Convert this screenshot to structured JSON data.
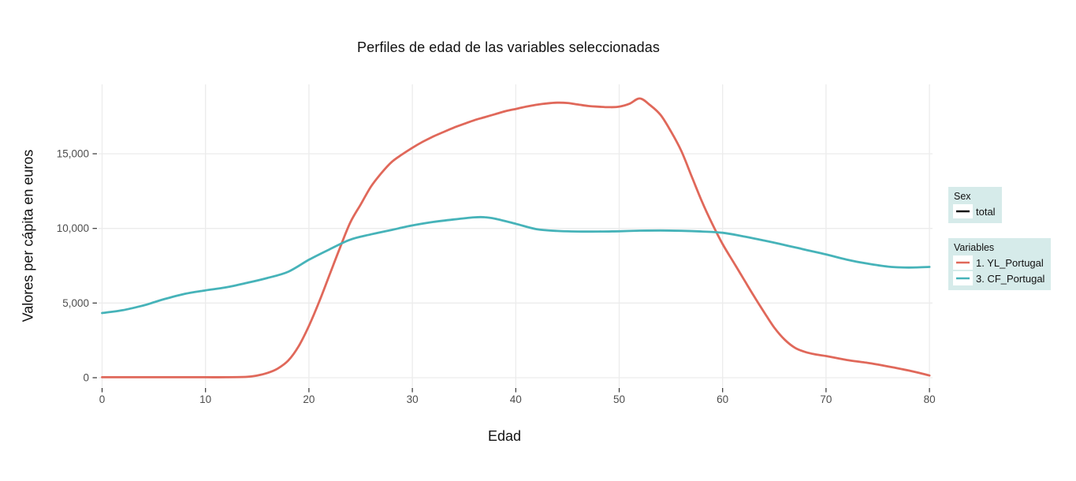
{
  "title": "Perfiles de edad de las variables seleccionadas",
  "x_axis": {
    "label": "Edad",
    "ticks": [
      {
        "v": 0,
        "label": "0"
      },
      {
        "v": 10,
        "label": "10"
      },
      {
        "v": 20,
        "label": "20"
      },
      {
        "v": 30,
        "label": "30"
      },
      {
        "v": 40,
        "label": "40"
      },
      {
        "v": 50,
        "label": "50"
      },
      {
        "v": 60,
        "label": "60"
      },
      {
        "v": 70,
        "label": "70"
      },
      {
        "v": 80,
        "label": "80"
      }
    ]
  },
  "y_axis": {
    "label": "Valores per cápita en euros",
    "ticks": [
      {
        "v": 0,
        "label": "0"
      },
      {
        "v": 5000,
        "label": "5,000"
      },
      {
        "v": 10000,
        "label": "10,000"
      },
      {
        "v": 15000,
        "label": "15,000"
      }
    ]
  },
  "legend": {
    "sex": {
      "title": "Sex",
      "bg": "#d6ebea",
      "items": [
        {
          "label": "total",
          "color": "#111111"
        }
      ]
    },
    "variables": {
      "title": "Variables",
      "bg": "#d6ebea",
      "items": [
        {
          "label": "1. YL_Portugal",
          "color": "#e0685a"
        },
        {
          "label": "3. CF_Portugal",
          "color": "#46b3b9"
        }
      ]
    }
  },
  "colors": {
    "gridline": "#ececec",
    "tick_mark": "#333333",
    "tick_text": "#4d4d4d",
    "background": "#ffffff",
    "legend_bg": "#d6ebea"
  },
  "chart_data": {
    "type": "line",
    "title": "Perfiles de edad de las variables seleccionadas",
    "xlabel": "Edad",
    "ylabel": "Valores per cápita en euros",
    "xlim": [
      0,
      80
    ],
    "ylim": [
      0,
      19600
    ],
    "grid": true,
    "legend_position": "right",
    "x_ticks": [
      0,
      10,
      20,
      30,
      40,
      50,
      60,
      70,
      80
    ],
    "y_ticks": [
      0,
      5000,
      10000,
      15000
    ],
    "series": [
      {
        "name": "1. YL_Portugal",
        "color": "#e0685a",
        "points": [
          [
            0,
            30
          ],
          [
            2,
            30
          ],
          [
            4,
            30
          ],
          [
            6,
            30
          ],
          [
            8,
            30
          ],
          [
            10,
            30
          ],
          [
            12,
            30
          ],
          [
            14,
            60
          ],
          [
            15,
            150
          ],
          [
            16,
            320
          ],
          [
            17,
            620
          ],
          [
            18,
            1150
          ],
          [
            19,
            2100
          ],
          [
            20,
            3470
          ],
          [
            21,
            5100
          ],
          [
            22,
            6900
          ],
          [
            23,
            8700
          ],
          [
            24,
            10400
          ],
          [
            25,
            11600
          ],
          [
            26,
            12800
          ],
          [
            27,
            13700
          ],
          [
            28,
            14450
          ],
          [
            29,
            14950
          ],
          [
            30,
            15400
          ],
          [
            31,
            15800
          ],
          [
            32,
            16150
          ],
          [
            33,
            16450
          ],
          [
            34,
            16750
          ],
          [
            35,
            17000
          ],
          [
            36,
            17250
          ],
          [
            37,
            17450
          ],
          [
            38,
            17650
          ],
          [
            39,
            17850
          ],
          [
            40,
            18000
          ],
          [
            41,
            18150
          ],
          [
            42,
            18280
          ],
          [
            43,
            18370
          ],
          [
            44,
            18420
          ],
          [
            45,
            18400
          ],
          [
            46,
            18300
          ],
          [
            47,
            18200
          ],
          [
            48,
            18150
          ],
          [
            49,
            18120
          ],
          [
            50,
            18150
          ],
          [
            51,
            18350
          ],
          [
            52,
            18700
          ],
          [
            53,
            18250
          ],
          [
            54,
            17600
          ],
          [
            55,
            16500
          ],
          [
            56,
            15200
          ],
          [
            57,
            13500
          ],
          [
            58,
            11800
          ],
          [
            59,
            10300
          ],
          [
            60,
            8950
          ],
          [
            61,
            7800
          ],
          [
            62,
            6650
          ],
          [
            63,
            5500
          ],
          [
            64,
            4400
          ],
          [
            65,
            3350
          ],
          [
            66,
            2550
          ],
          [
            67,
            2000
          ],
          [
            68,
            1720
          ],
          [
            69,
            1560
          ],
          [
            70,
            1450
          ],
          [
            71,
            1320
          ],
          [
            72,
            1190
          ],
          [
            73,
            1090
          ],
          [
            74,
            1000
          ],
          [
            75,
            880
          ],
          [
            76,
            750
          ],
          [
            77,
            620
          ],
          [
            78,
            480
          ],
          [
            79,
            320
          ],
          [
            80,
            150
          ]
        ]
      },
      {
        "name": "3. CF_Portugal",
        "color": "#46b3b9",
        "points": [
          [
            0,
            4330
          ],
          [
            2,
            4520
          ],
          [
            4,
            4840
          ],
          [
            5,
            5050
          ],
          [
            6,
            5260
          ],
          [
            8,
            5620
          ],
          [
            10,
            5850
          ],
          [
            12,
            6050
          ],
          [
            14,
            6350
          ],
          [
            16,
            6680
          ],
          [
            18,
            7100
          ],
          [
            20,
            7900
          ],
          [
            22,
            8600
          ],
          [
            24,
            9250
          ],
          [
            26,
            9600
          ],
          [
            28,
            9900
          ],
          [
            30,
            10200
          ],
          [
            32,
            10430
          ],
          [
            34,
            10600
          ],
          [
            36,
            10740
          ],
          [
            37,
            10750
          ],
          [
            38,
            10650
          ],
          [
            40,
            10310
          ],
          [
            42,
            9950
          ],
          [
            44,
            9830
          ],
          [
            46,
            9790
          ],
          [
            48,
            9790
          ],
          [
            50,
            9810
          ],
          [
            52,
            9850
          ],
          [
            54,
            9860
          ],
          [
            56,
            9840
          ],
          [
            58,
            9790
          ],
          [
            60,
            9710
          ],
          [
            62,
            9470
          ],
          [
            64,
            9190
          ],
          [
            66,
            8890
          ],
          [
            68,
            8570
          ],
          [
            70,
            8260
          ],
          [
            72,
            7910
          ],
          [
            74,
            7640
          ],
          [
            76,
            7440
          ],
          [
            78,
            7380
          ],
          [
            80,
            7420
          ]
        ]
      }
    ]
  }
}
